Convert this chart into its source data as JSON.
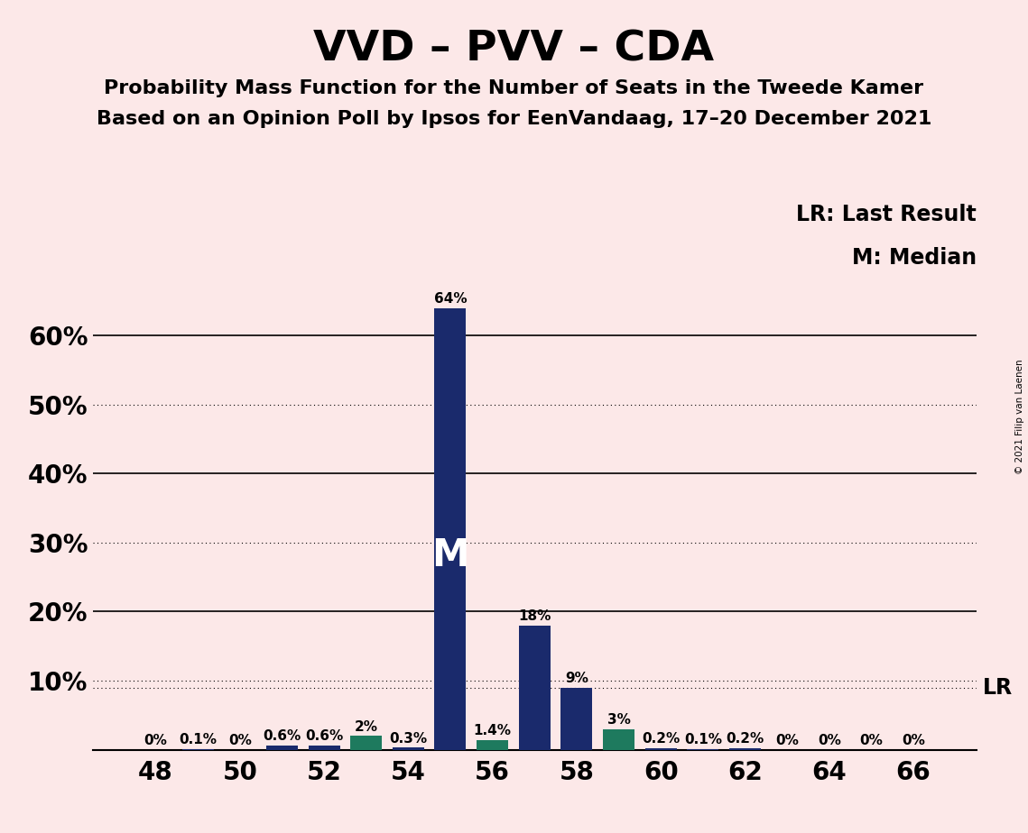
{
  "title": "VVD – PVV – CDA",
  "subtitle1": "Probability Mass Function for the Number of Seats in the Tweede Kamer",
  "subtitle2": "Based on an Opinion Poll by Ipsos for EenVandaag, 17–20 December 2021",
  "copyright": "© 2021 Filip van Laenen",
  "seats": [
    48,
    49,
    50,
    51,
    52,
    53,
    54,
    55,
    56,
    57,
    58,
    59,
    60,
    61,
    62,
    63,
    64,
    65,
    66
  ],
  "values": [
    0.0,
    0.1,
    0.0,
    0.6,
    0.6,
    2.0,
    0.3,
    64.0,
    1.4,
    18.0,
    9.0,
    3.0,
    0.2,
    0.1,
    0.2,
    0.0,
    0.0,
    0.0,
    0.0
  ],
  "labels": [
    "0%",
    "0.1%",
    "0%",
    "0.6%",
    "0.6%",
    "2%",
    "0.3%",
    "64%",
    "1.4%",
    "18%",
    "9%",
    "3%",
    "0.2%",
    "0.1%",
    "0.2%",
    "0%",
    "0%",
    "0%",
    "0%"
  ],
  "bar_colors": [
    "#1a2a6c",
    "#1a2a6c",
    "#1a2a6c",
    "#1a2a6c",
    "#1a2a6c",
    "#1e7a5e",
    "#1a2a6c",
    "#1a2a6c",
    "#1e7a5e",
    "#1a2a6c",
    "#1a2a6c",
    "#1e7a5e",
    "#1a2a6c",
    "#1a2a6c",
    "#1a2a6c",
    "#1a2a6c",
    "#1a2a6c",
    "#1a2a6c",
    "#1a2a6c"
  ],
  "median_seat": 55,
  "lr_value": 9.0,
  "background_color": "#fce8e8",
  "xtick_seats": [
    48,
    50,
    52,
    54,
    56,
    58,
    60,
    62,
    64,
    66
  ],
  "ytick_vals": [
    0,
    10,
    20,
    30,
    40,
    50,
    60
  ],
  "ytick_labels": [
    "",
    "10%",
    "20%",
    "30%",
    "40%",
    "50%",
    "60%"
  ],
  "solid_grid_lines": [
    20,
    40,
    60
  ],
  "dotted_grid_lines": [
    10,
    30,
    50
  ],
  "ylim": [
    0,
    70
  ],
  "xlim": [
    46.5,
    67.5
  ],
  "legend_lr": "LR: Last Result",
  "legend_m": "M: Median",
  "lr_label": "LR",
  "m_label": "M",
  "title_fontsize": 34,
  "subtitle_fontsize": 16,
  "axis_fontsize": 20,
  "label_fontsize": 11,
  "legend_fontsize": 17,
  "bar_width": 0.75
}
